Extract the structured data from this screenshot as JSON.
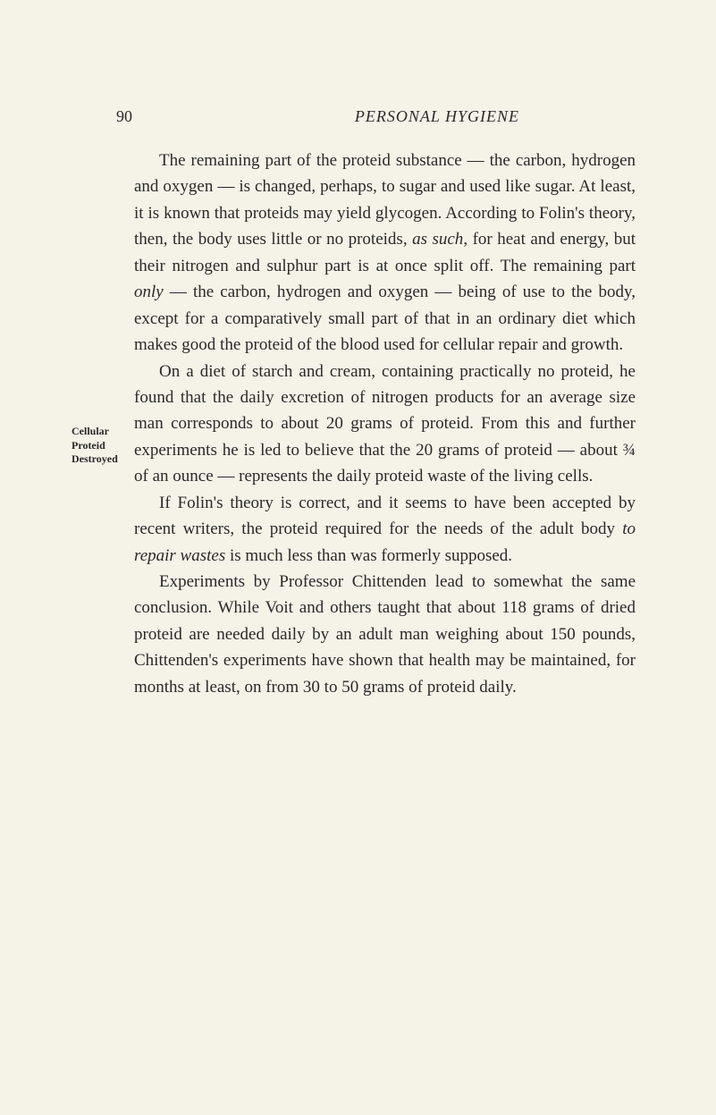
{
  "page_number": "90",
  "running_title": "PERSONAL HYGIENE",
  "margin_note": {
    "line1": "Cellular",
    "line2": "Proteid",
    "line3": "Destroyed"
  },
  "paragraphs": {
    "p1_part1": "The remaining part of the proteid substance — the carbon, hydrogen and oxygen — is changed, per­haps, to sugar and used like sugar. At least, it is known that proteids may yield glycogen. According to Folin's theory, then, the body uses little or no pro­teids, ",
    "p1_italic1": "as such",
    "p1_part2": ", for heat and energy, but their nitrogen and sulphur part is at once split off. The remaining part ",
    "p1_italic2": "only",
    "p1_part3": " — the carbon, hydrogen and oxygen — being of use to the body, except for a comparatively small part of that in an ordinary diet which makes good the proteid of the blood used for cellular repair and growth.",
    "p2": "On a diet of starch and cream, containing practically no proteid, he found that the daily excretion of nitro­gen products for an average size man corresponds to about 20 grams of proteid. From this and further experiments he is led to believe that the 20 grams of proteid — about ¾ of an ounce — represents the daily proteid waste of the living cells.",
    "p3_part1": "If Folin's theory is correct, and it seems to have been accepted by recent writers, the proteid required for the needs of the adult body ",
    "p3_italic1": "to repair wastes",
    "p3_part2": " is much less than was formerly supposed.",
    "p4": "Experiments by Professor Chittenden lead to some­what the same conclusion. While Voit and others taught that about 118 grams of dried proteid are needed daily by an adult man weighing about 150 pounds, Chittenden's experiments have shown that health may be maintained, for months at least, on from 30 to 50 grams of proteid daily."
  }
}
